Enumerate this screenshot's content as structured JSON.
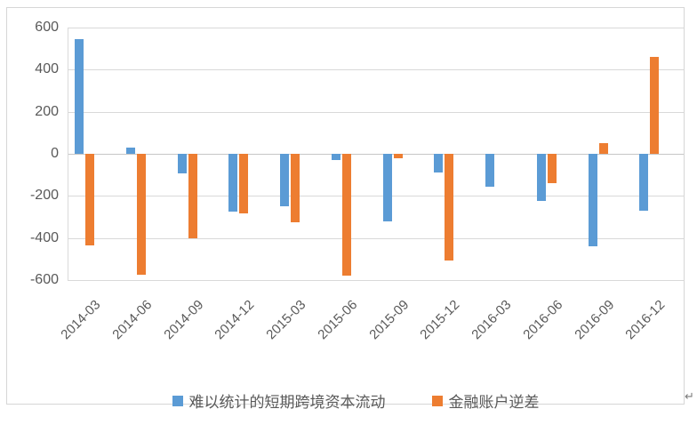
{
  "chart_data": {
    "type": "bar",
    "title": "",
    "xlabel": "",
    "ylabel": "",
    "categories": [
      "2014-03",
      "2014-06",
      "2014-09",
      "2014-12",
      "2015-03",
      "2015-06",
      "2015-09",
      "2015-12",
      "2016-03",
      "2016-06",
      "2016-09",
      "2016-12"
    ],
    "series": [
      {
        "name": "难以统计的短期跨境资本流动",
        "color": "#5B9BD5",
        "values": [
          545,
          30,
          -95,
          -275,
          -250,
          -30,
          -320,
          -90,
          -155,
          -225,
          -440,
          -270
        ]
      },
      {
        "name": "金融账户逆差",
        "color": "#ED7D31",
        "values": [
          -435,
          -575,
          -400,
          -285,
          -325,
          -580,
          -20,
          -505,
          0,
          -140,
          50,
          460
        ]
      }
    ],
    "ylim": [
      -600,
      600
    ],
    "ytick_step": 200,
    "ytick_labels": [
      "600",
      "400",
      "200",
      "0",
      "-200",
      "-400",
      "-600"
    ],
    "grid": true,
    "legend_position": "bottom",
    "gridline_color": "#D9D9D9",
    "tick_label_color": "#595959"
  },
  "page": {
    "paragraph_mark": "↵"
  }
}
